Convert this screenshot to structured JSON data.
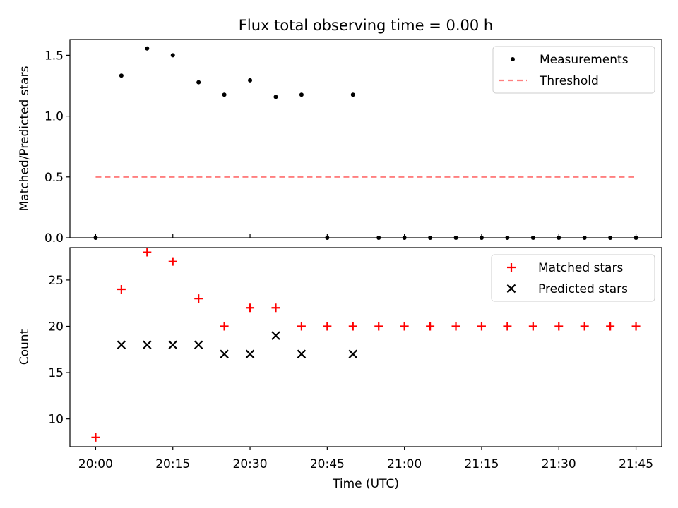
{
  "chart_data": {
    "title": "Flux total observing time = 0.00 h",
    "xlabel": "Time (UTC)",
    "x_tick_labels": [
      "20:00",
      "20:15",
      "20:30",
      "20:45",
      "21:00",
      "21:15",
      "21:30",
      "21:45"
    ],
    "times": [
      "20:00",
      "20:05",
      "20:10",
      "20:15",
      "20:20",
      "20:25",
      "20:30",
      "20:35",
      "20:40",
      "20:45",
      "20:50",
      "20:55",
      "21:00",
      "21:05",
      "21:10",
      "21:15",
      "21:20",
      "21:25",
      "21:30",
      "21:35",
      "21:40",
      "21:45"
    ],
    "xlim": [
      "19:55",
      "21:50"
    ],
    "panels": [
      {
        "type": "scatter",
        "ylabel": "Matched/Predicted stars",
        "ylim": [
          0,
          1.63
        ],
        "yticks": [
          0.0,
          0.5,
          1.0,
          1.5
        ],
        "ytick_labels": [
          "0.0",
          "0.5",
          "1.0",
          "1.5"
        ],
        "legend_position": "top-right",
        "series": [
          {
            "name": "Measurements",
            "marker": "dot",
            "color": "#000000",
            "points": [
              {
                "x": "20:00",
                "y": 0.0
              },
              {
                "x": "20:05",
                "y": 1.333
              },
              {
                "x": "20:10",
                "y": 1.556
              },
              {
                "x": "20:15",
                "y": 1.5
              },
              {
                "x": "20:20",
                "y": 1.278
              },
              {
                "x": "20:25",
                "y": 1.176
              },
              {
                "x": "20:30",
                "y": 1.294
              },
              {
                "x": "20:35",
                "y": 1.158
              },
              {
                "x": "20:40",
                "y": 1.176
              },
              {
                "x": "20:45",
                "y": 0.0
              },
              {
                "x": "20:50",
                "y": 1.176
              },
              {
                "x": "20:55",
                "y": 0.0
              },
              {
                "x": "21:00",
                "y": 0.0
              },
              {
                "x": "21:05",
                "y": 0.0
              },
              {
                "x": "21:10",
                "y": 0.0
              },
              {
                "x": "21:15",
                "y": 0.0
              },
              {
                "x": "21:20",
                "y": 0.0
              },
              {
                "x": "21:25",
                "y": 0.0
              },
              {
                "x": "21:30",
                "y": 0.0
              },
              {
                "x": "21:35",
                "y": 0.0
              },
              {
                "x": "21:40",
                "y": 0.0
              },
              {
                "x": "21:45",
                "y": 0.0
              }
            ]
          },
          {
            "name": "Threshold",
            "marker": "dashed-line",
            "color": "#ff7f7f",
            "points": [
              {
                "x": "20:00",
                "y": 0.5
              },
              {
                "x": "21:45",
                "y": 0.5
              }
            ]
          }
        ]
      },
      {
        "type": "scatter",
        "ylabel": "Count",
        "ylim": [
          7,
          28.5
        ],
        "yticks": [
          10,
          15,
          20,
          25
        ],
        "ytick_labels": [
          "10",
          "15",
          "20",
          "25"
        ],
        "legend_position": "top-right",
        "series": [
          {
            "name": "Matched stars",
            "marker": "plus",
            "color": "#ff0000",
            "points": [
              {
                "x": "20:00",
                "y": 8
              },
              {
                "x": "20:05",
                "y": 24
              },
              {
                "x": "20:10",
                "y": 28
              },
              {
                "x": "20:15",
                "y": 27
              },
              {
                "x": "20:20",
                "y": 23
              },
              {
                "x": "20:25",
                "y": 20
              },
              {
                "x": "20:30",
                "y": 22
              },
              {
                "x": "20:35",
                "y": 22
              },
              {
                "x": "20:40",
                "y": 20
              },
              {
                "x": "20:45",
                "y": 20
              },
              {
                "x": "20:50",
                "y": 20
              },
              {
                "x": "20:55",
                "y": 20
              },
              {
                "x": "21:00",
                "y": 20
              },
              {
                "x": "21:05",
                "y": 20
              },
              {
                "x": "21:10",
                "y": 20
              },
              {
                "x": "21:15",
                "y": 20
              },
              {
                "x": "21:20",
                "y": 20
              },
              {
                "x": "21:25",
                "y": 20
              },
              {
                "x": "21:30",
                "y": 20
              },
              {
                "x": "21:35",
                "y": 20
              },
              {
                "x": "21:40",
                "y": 20
              },
              {
                "x": "21:45",
                "y": 20
              }
            ]
          },
          {
            "name": "Predicted stars",
            "marker": "x",
            "color": "#000000",
            "points": [
              {
                "x": "20:05",
                "y": 18
              },
              {
                "x": "20:10",
                "y": 18
              },
              {
                "x": "20:15",
                "y": 18
              },
              {
                "x": "20:20",
                "y": 18
              },
              {
                "x": "20:25",
                "y": 17
              },
              {
                "x": "20:30",
                "y": 17
              },
              {
                "x": "20:35",
                "y": 19
              },
              {
                "x": "20:40",
                "y": 17
              },
              {
                "x": "20:50",
                "y": 17
              }
            ]
          }
        ]
      }
    ]
  }
}
